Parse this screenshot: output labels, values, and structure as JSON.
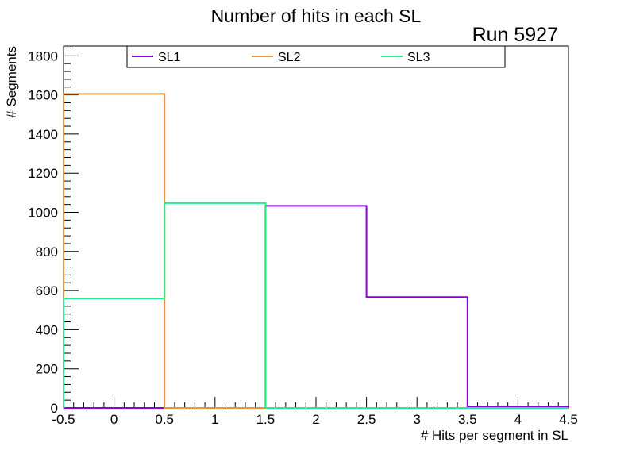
{
  "chart_data": {
    "type": "histogram-step",
    "title": "Number of hits in each SL",
    "run_label": "Run 5927",
    "xlabel": "# Hits per segment in SL",
    "ylabel": "# Segments",
    "xlim": [
      -0.5,
      4.5
    ],
    "ylim": [
      0,
      1850
    ],
    "x_tick_labels": [
      "-0.5",
      "0",
      "0.5",
      "1",
      "1.5",
      "2",
      "2.5",
      "3",
      "3.5",
      "4",
      "4.5"
    ],
    "y_tick_labels": [
      "0",
      "200",
      "400",
      "600",
      "800",
      "1000",
      "1200",
      "1400",
      "1600",
      "1800"
    ],
    "bin_edges": [
      -0.5,
      0.5,
      1.5,
      2.5,
      3.5,
      4.5
    ],
    "series": [
      {
        "name": "SL1",
        "color": "#8800dd",
        "values": [
          0,
          0,
          1033,
          567,
          5
        ]
      },
      {
        "name": "SL2",
        "color": "#f0923a",
        "values": [
          1605,
          0,
          0,
          0,
          0
        ]
      },
      {
        "name": "SL3",
        "color": "#22ee88",
        "values": [
          560,
          1047,
          0,
          0,
          0
        ]
      }
    ],
    "legend": {
      "position": "top"
    }
  }
}
